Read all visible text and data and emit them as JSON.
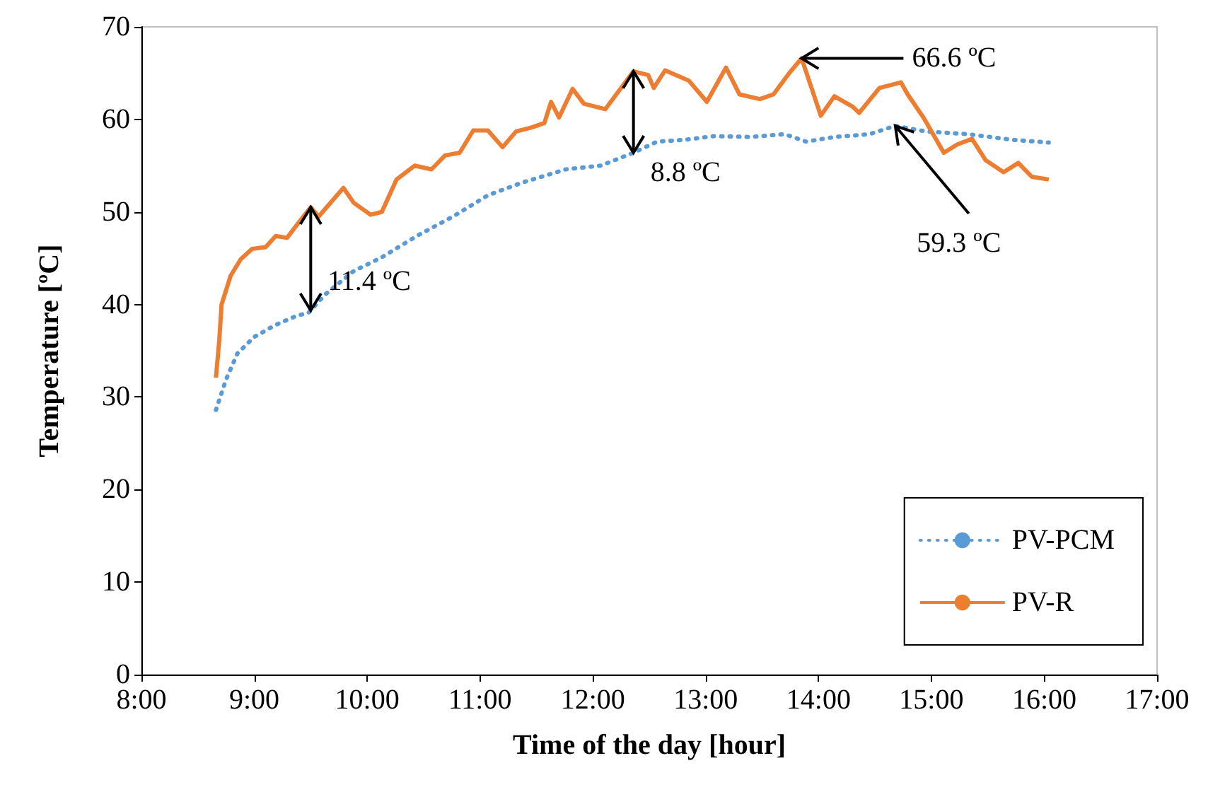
{
  "chart_data": {
    "type": "line",
    "xlabel": "Time of the day [hour]",
    "ylabel": "Temperature [ºC]",
    "xlim": [
      8,
      17
    ],
    "xticks": [
      {
        "value": 8,
        "label": "8:00"
      },
      {
        "value": 9,
        "label": "9:00"
      },
      {
        "value": 10,
        "label": "10:00"
      },
      {
        "value": 11,
        "label": "11:00"
      },
      {
        "value": 12,
        "label": "12:00"
      },
      {
        "value": 13,
        "label": "13:00"
      },
      {
        "value": 14,
        "label": "14:00"
      },
      {
        "value": 15,
        "label": "15:00"
      },
      {
        "value": 16,
        "label": "16:00"
      },
      {
        "value": 17,
        "label": "17:00"
      }
    ],
    "ylim": [
      0,
      70
    ],
    "yticks": [
      0,
      10,
      20,
      30,
      40,
      50,
      60,
      70
    ],
    "grid": false,
    "legend": "bottom right",
    "marker": "none",
    "series": [
      {
        "name": "PV-PCM",
        "color": "#5b9bd5",
        "line_style": "dotted",
        "x": [
          8.66,
          8.75,
          8.85,
          9.0,
          9.19,
          9.38,
          9.48,
          9.63,
          9.88,
          10.13,
          10.44,
          10.76,
          11.07,
          11.38,
          11.76,
          12.07,
          12.36,
          12.57,
          12.82,
          13.08,
          13.39,
          13.7,
          13.89,
          14.14,
          14.45,
          14.68,
          14.95,
          15.33,
          15.71,
          16.04
        ],
        "values": [
          28.6,
          31.9,
          34.7,
          36.5,
          37.8,
          38.8,
          39.1,
          41.1,
          43.6,
          45.1,
          47.4,
          49.5,
          51.8,
          53.2,
          54.6,
          55.0,
          56.4,
          57.6,
          57.8,
          58.2,
          58.1,
          58.4,
          57.6,
          58.1,
          58.4,
          59.3,
          58.7,
          58.4,
          57.8,
          57.5
        ]
      },
      {
        "name": "PV-R",
        "color": "#ed7d31",
        "line_style": "solid",
        "x": [
          8.66,
          8.69,
          8.71,
          8.79,
          8.88,
          8.98,
          9.1,
          9.19,
          9.29,
          9.39,
          9.5,
          9.57,
          9.69,
          9.79,
          9.88,
          10.03,
          10.13,
          10.26,
          10.42,
          10.57,
          10.69,
          10.82,
          10.94,
          11.07,
          11.2,
          11.32,
          11.45,
          11.57,
          11.63,
          11.7,
          11.82,
          11.92,
          12.11,
          12.36,
          12.49,
          12.54,
          12.64,
          12.85,
          13.01,
          13.18,
          13.3,
          13.48,
          13.6,
          13.74,
          13.85,
          14.02,
          14.14,
          14.3,
          14.36,
          14.54,
          14.73,
          14.79,
          14.93,
          15.11,
          15.23,
          15.36,
          15.48,
          15.64,
          15.77,
          15.89,
          16.04
        ],
        "values": [
          32.1,
          36.2,
          40.0,
          43.1,
          44.9,
          46.0,
          46.2,
          47.4,
          47.2,
          48.8,
          50.5,
          49.5,
          51.2,
          52.6,
          51.0,
          49.7,
          50.0,
          53.5,
          55.0,
          54.6,
          56.1,
          56.4,
          58.8,
          58.8,
          57.0,
          58.7,
          59.1,
          59.6,
          61.9,
          60.2,
          63.3,
          61.7,
          61.1,
          65.2,
          64.8,
          63.4,
          65.3,
          64.2,
          61.9,
          65.6,
          62.7,
          62.2,
          62.7,
          65.0,
          66.6,
          60.4,
          62.5,
          61.4,
          60.7,
          63.4,
          64.0,
          62.7,
          60.2,
          56.4,
          57.3,
          57.9,
          55.6,
          54.3,
          55.3,
          53.8,
          53.5
        ]
      }
    ],
    "annotations": [
      {
        "text": "66.6 ºC",
        "x": 13.85,
        "y": 66.6
      },
      {
        "text": "59.3 ºC",
        "x": 14.68,
        "y": 59.3
      },
      {
        "text": "11.4 ºC",
        "x": 9.5,
        "y": 50.5
      },
      {
        "text": "8.8 ºC",
        "x": 12.36,
        "y": 65.2
      }
    ]
  }
}
